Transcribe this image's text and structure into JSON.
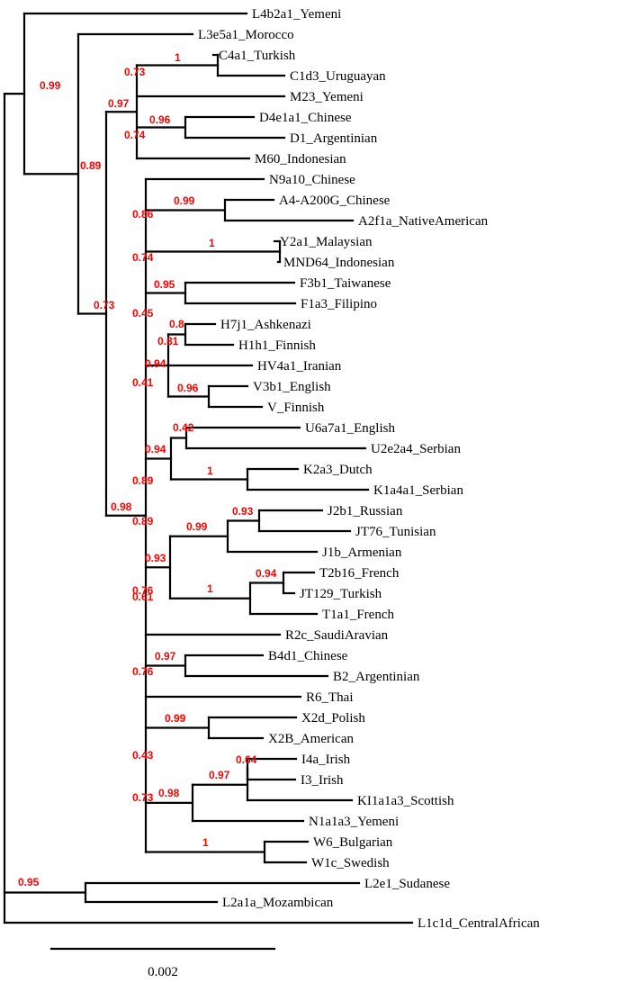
{
  "colors": {
    "branch": "#000000",
    "support_value": "#ff0000",
    "label": "#000000"
  },
  "scale_bar": {
    "label": "0.002"
  },
  "leaves": [
    "L4b2a1_Yemeni",
    "L3e5a1_Morocco",
    "C4a1_Turkish",
    "C1d3_Uruguayan",
    "M23_Yemeni",
    "D4e1a1_Chinese",
    "D1_Argentinian",
    "M60_Indonesian",
    "N9a10_Chinese",
    "A4-A200G_Chinese",
    "A2f1a_NativeAmerican",
    "Y2a1_Malaysian",
    "MND64_Indonesian",
    "F3b1_Taiwanese",
    "F1a3_Filipino",
    "H7j1_Ashkenazi",
    "H1h1_Finnish",
    "HV4a1_Iranian",
    "V3b1_English",
    "V_Finnish",
    "U6a7a1_English",
    "U2e2a4_Serbian",
    "K2a3_Dutch",
    "K1a4a1_Serbian",
    "J2b1_Russian",
    "JT76_Tunisian",
    "J1b_Armenian",
    "T2b16_French",
    "JT129_Turkish",
    "T1a1_French",
    "R2c_SaudiAravian",
    "B4d1_Chinese",
    "B2_Argentinian",
    "R6_Thai",
    "X2d_Polish",
    "X2B_American",
    "I4a_Irish",
    "I3_Irish",
    "KI1a1a3_Scottish",
    "N1a1a3_Yemeni",
    "W6_Bulgarian",
    "W1c_Swedish",
    "L2e1_Sudanese",
    "L2a1a_Mozambican",
    "L1c1d_CentralAfrican"
  ],
  "support_values": [
    "0.99",
    "0.89",
    "0.97",
    "0.73",
    "1",
    "0.96",
    "0.74",
    "0.73",
    "0.98",
    "0.86",
    "0.99",
    "0.74",
    "1",
    "0.45",
    "0.95",
    "0.41",
    "0.94",
    "0.8",
    "0.81",
    "0.96",
    "0.89",
    "0.94",
    "0.42",
    "1",
    "0.89",
    "0.93",
    "0.99",
    "0.93",
    "1",
    "0.94",
    "0.76",
    "0.61",
    "0.76",
    "0.97",
    "0.43",
    "0.99",
    "0.73",
    "0.98",
    "0.97",
    "0.64",
    "1",
    "0.95"
  ]
}
